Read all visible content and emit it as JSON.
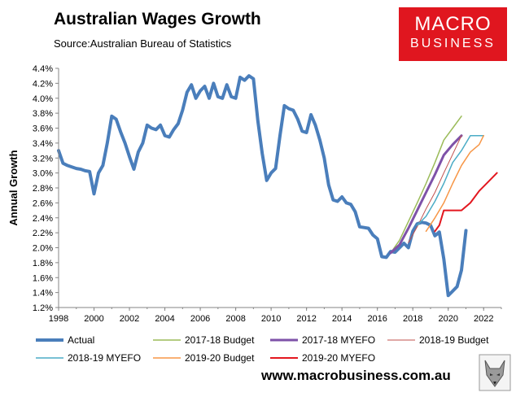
{
  "title": "Australian Wages Growth",
  "source": "Source:Australian Bureau of Statistics",
  "logo": {
    "line1": "MACRO",
    "line2": "BUSINESS"
  },
  "website": "www.macrobusiness.com.au",
  "chart_data": {
    "type": "line",
    "title": "Australian Wages Growth",
    "ylabel": "Annual Growth",
    "xlabel": "",
    "xlim": [
      1998,
      2023
    ],
    "ylim": [
      1.2,
      4.4
    ],
    "x_ticks": [
      "1998",
      "2000",
      "2002",
      "2004",
      "2006",
      "2008",
      "2010",
      "2012",
      "2014",
      "2016",
      "2018",
      "2020",
      "2022"
    ],
    "y_ticks": [
      "1.2%",
      "1.4%",
      "1.6%",
      "1.8%",
      "2.0%",
      "2.2%",
      "2.4%",
      "2.6%",
      "2.8%",
      "3.0%",
      "3.2%",
      "3.4%",
      "3.6%",
      "3.8%",
      "4.0%",
      "4.2%",
      "4.4%"
    ],
    "grid": false,
    "legend_position": "bottom",
    "series": [
      {
        "name": "Actual",
        "color": "#4a7ebb",
        "width": 4,
        "points": [
          [
            1998.0,
            3.3
          ],
          [
            1998.25,
            3.13
          ],
          [
            1998.5,
            3.1
          ],
          [
            1998.75,
            3.08
          ],
          [
            1999.0,
            3.06
          ],
          [
            1999.25,
            3.05
          ],
          [
            1999.5,
            3.03
          ],
          [
            1999.75,
            3.02
          ],
          [
            2000.0,
            2.72
          ],
          [
            2000.25,
            3.0
          ],
          [
            2000.5,
            3.1
          ],
          [
            2000.75,
            3.4
          ],
          [
            2001.0,
            3.76
          ],
          [
            2001.25,
            3.72
          ],
          [
            2001.5,
            3.55
          ],
          [
            2001.75,
            3.4
          ],
          [
            2002.0,
            3.22
          ],
          [
            2002.25,
            3.05
          ],
          [
            2002.5,
            3.28
          ],
          [
            2002.75,
            3.4
          ],
          [
            2003.0,
            3.64
          ],
          [
            2003.25,
            3.6
          ],
          [
            2003.5,
            3.58
          ],
          [
            2003.75,
            3.64
          ],
          [
            2004.0,
            3.5
          ],
          [
            2004.25,
            3.48
          ],
          [
            2004.5,
            3.58
          ],
          [
            2004.75,
            3.66
          ],
          [
            2005.0,
            3.84
          ],
          [
            2005.25,
            4.08
          ],
          [
            2005.5,
            4.18
          ],
          [
            2005.75,
            4.0
          ],
          [
            2006.0,
            4.1
          ],
          [
            2006.25,
            4.16
          ],
          [
            2006.5,
            4.0
          ],
          [
            2006.75,
            4.2
          ],
          [
            2007.0,
            4.02
          ],
          [
            2007.25,
            4.0
          ],
          [
            2007.5,
            4.18
          ],
          [
            2007.75,
            4.02
          ],
          [
            2008.0,
            4.0
          ],
          [
            2008.25,
            4.28
          ],
          [
            2008.5,
            4.24
          ],
          [
            2008.75,
            4.3
          ],
          [
            2009.0,
            4.26
          ],
          [
            2009.25,
            3.7
          ],
          [
            2009.5,
            3.26
          ],
          [
            2009.75,
            2.9
          ],
          [
            2010.0,
            3.0
          ],
          [
            2010.25,
            3.06
          ],
          [
            2010.5,
            3.5
          ],
          [
            2010.75,
            3.9
          ],
          [
            2011.0,
            3.86
          ],
          [
            2011.25,
            3.84
          ],
          [
            2011.5,
            3.72
          ],
          [
            2011.75,
            3.56
          ],
          [
            2012.0,
            3.54
          ],
          [
            2012.25,
            3.78
          ],
          [
            2012.5,
            3.64
          ],
          [
            2012.75,
            3.44
          ],
          [
            2013.0,
            3.2
          ],
          [
            2013.25,
            2.84
          ],
          [
            2013.5,
            2.64
          ],
          [
            2013.75,
            2.62
          ],
          [
            2014.0,
            2.68
          ],
          [
            2014.25,
            2.6
          ],
          [
            2014.5,
            2.58
          ],
          [
            2014.75,
            2.48
          ],
          [
            2015.0,
            2.28
          ],
          [
            2015.25,
            2.27
          ],
          [
            2015.5,
            2.26
          ],
          [
            2015.75,
            2.17
          ],
          [
            2016.0,
            2.12
          ],
          [
            2016.25,
            1.88
          ],
          [
            2016.5,
            1.87
          ],
          [
            2016.75,
            1.95
          ],
          [
            2017.0,
            1.94
          ],
          [
            2017.25,
            2.0
          ],
          [
            2017.5,
            2.06
          ],
          [
            2017.75,
            2.0
          ],
          [
            2018.0,
            2.22
          ],
          [
            2018.25,
            2.32
          ],
          [
            2018.5,
            2.34
          ],
          [
            2018.75,
            2.33
          ],
          [
            2019.0,
            2.3
          ],
          [
            2019.25,
            2.16
          ],
          [
            2019.5,
            2.21
          ],
          [
            2019.75,
            1.85
          ],
          [
            2020.0,
            1.36
          ],
          [
            2020.25,
            1.42
          ],
          [
            2020.5,
            1.48
          ],
          [
            2020.75,
            1.7
          ],
          [
            2021.0,
            2.23
          ]
        ]
      },
      {
        "name": "2017-18 Budget",
        "color": "#9bbb59",
        "width": 1.5,
        "points": [
          [
            2016.75,
            1.93
          ],
          [
            2017.25,
            2.1
          ],
          [
            2017.75,
            2.35
          ],
          [
            2018.25,
            2.6
          ],
          [
            2018.75,
            2.86
          ],
          [
            2019.25,
            3.14
          ],
          [
            2019.75,
            3.44
          ],
          [
            2020.25,
            3.6
          ],
          [
            2020.75,
            3.76
          ]
        ]
      },
      {
        "name": "2017-18 MYEFO",
        "color": "#7e52a8",
        "width": 3,
        "points": [
          [
            2016.75,
            1.93
          ],
          [
            2017.25,
            2.04
          ],
          [
            2017.75,
            2.26
          ],
          [
            2018.25,
            2.5
          ],
          [
            2018.75,
            2.74
          ],
          [
            2019.25,
            2.98
          ],
          [
            2019.75,
            3.24
          ],
          [
            2020.25,
            3.38
          ],
          [
            2020.75,
            3.5
          ]
        ]
      },
      {
        "name": "2018-19 Budget",
        "color": "#c0504d",
        "width": 1,
        "points": [
          [
            2017.75,
            2.07
          ],
          [
            2018.25,
            2.28
          ],
          [
            2018.75,
            2.52
          ],
          [
            2019.25,
            2.74
          ],
          [
            2019.75,
            3.0
          ],
          [
            2020.25,
            3.25
          ],
          [
            2020.75,
            3.5
          ]
        ]
      },
      {
        "name": "2018-19 MYEFO",
        "color": "#4bacc6",
        "width": 1.5,
        "points": [
          [
            2018.25,
            2.3
          ],
          [
            2018.75,
            2.42
          ],
          [
            2019.25,
            2.62
          ],
          [
            2019.75,
            2.86
          ],
          [
            2020.25,
            3.14
          ],
          [
            2020.75,
            3.3
          ],
          [
            2021.25,
            3.5
          ],
          [
            2021.75,
            3.5
          ],
          [
            2022.0,
            3.5
          ]
        ]
      },
      {
        "name": "2019-20 Budget",
        "color": "#f79646",
        "width": 1.5,
        "points": [
          [
            2018.75,
            2.22
          ],
          [
            2019.25,
            2.4
          ],
          [
            2019.75,
            2.6
          ],
          [
            2020.25,
            2.86
          ],
          [
            2020.75,
            3.1
          ],
          [
            2021.25,
            3.28
          ],
          [
            2021.75,
            3.38
          ],
          [
            2022.0,
            3.5
          ]
        ]
      },
      {
        "name": "2019-20 MYEFO",
        "color": "#e3171f",
        "width": 2,
        "points": [
          [
            2019.25,
            2.22
          ],
          [
            2019.5,
            2.3
          ],
          [
            2019.75,
            2.5
          ],
          [
            2020.25,
            2.5
          ],
          [
            2020.75,
            2.5
          ],
          [
            2021.25,
            2.6
          ],
          [
            2021.75,
            2.76
          ],
          [
            2022.25,
            2.88
          ],
          [
            2022.75,
            3.0
          ]
        ]
      }
    ]
  }
}
